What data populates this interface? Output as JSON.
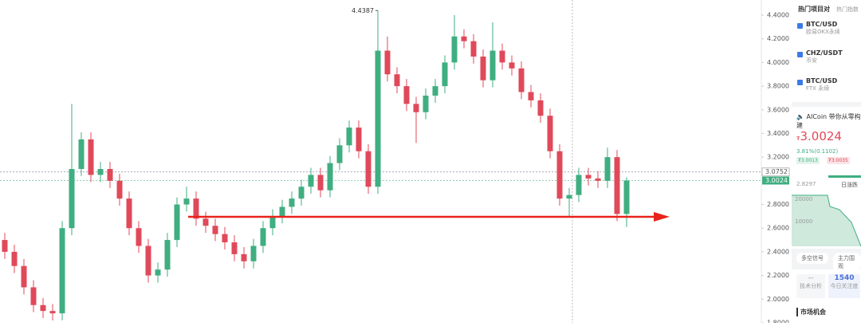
{
  "chart_data": {
    "type": "candlestick",
    "open": [
      2.5,
      2.4,
      2.28,
      2.1,
      1.95,
      1.9,
      1.88,
      2.6,
      3.1,
      3.35,
      3.05,
      3.1,
      3.0,
      2.85,
      2.6,
      2.45,
      2.2,
      2.25,
      2.5,
      2.8,
      2.85,
      2.68,
      2.62,
      2.55,
      2.48,
      2.38,
      2.32,
      2.45,
      2.6,
      2.7,
      2.78,
      2.85,
      2.95,
      3.05,
      2.92,
      3.15,
      3.3,
      3.45,
      3.25,
      2.95,
      4.1,
      3.9,
      3.8,
      3.65,
      3.58,
      3.72,
      3.8,
      4.0,
      4.22,
      4.18,
      4.05,
      3.85,
      4.1,
      4.0,
      3.95,
      3.75,
      3.68,
      3.55,
      3.25,
      2.85,
      2.88,
      3.05,
      3.02,
      3.0,
      3.2,
      2.72
    ],
    "high": [
      2.56,
      2.46,
      2.34,
      2.16,
      2.01,
      1.96,
      2.66,
      3.65,
      3.41,
      3.41,
      3.16,
      3.16,
      3.06,
      2.91,
      2.66,
      2.51,
      2.31,
      2.56,
      2.86,
      2.95,
      2.91,
      2.74,
      2.68,
      2.61,
      2.54,
      2.44,
      2.51,
      2.66,
      2.76,
      2.84,
      2.91,
      3.01,
      3.11,
      3.11,
      3.21,
      3.36,
      3.51,
      3.51,
      3.31,
      4.4387,
      4.22,
      3.96,
      3.86,
      3.71,
      3.78,
      3.86,
      4.06,
      4.4,
      4.28,
      4.24,
      4.11,
      4.34,
      4.16,
      4.06,
      4.01,
      3.81,
      3.74,
      3.61,
      3.31,
      2.94,
      3.11,
      3.11,
      3.08,
      3.28,
      3.26,
      3.03
    ],
    "low": [
      2.34,
      2.22,
      2.04,
      1.89,
      1.84,
      1.82,
      1.82,
      2.54,
      3.04,
      2.99,
      2.99,
      2.94,
      2.79,
      2.54,
      2.39,
      2.14,
      2.14,
      2.19,
      2.44,
      2.74,
      2.62,
      2.56,
      2.49,
      2.42,
      2.32,
      2.26,
      2.26,
      2.39,
      2.54,
      2.64,
      2.72,
      2.79,
      2.89,
      2.86,
      2.86,
      3.09,
      3.24,
      3.19,
      2.89,
      2.89,
      3.84,
      3.74,
      3.59,
      3.32,
      3.52,
      3.66,
      3.74,
      3.94,
      4.12,
      3.99,
      3.79,
      3.79,
      3.94,
      3.89,
      3.69,
      3.62,
      3.49,
      3.19,
      2.79,
      2.7,
      2.82,
      2.96,
      2.94,
      2.94,
      2.66,
      2.61
    ],
    "close": [
      2.4,
      2.28,
      2.1,
      1.95,
      1.9,
      1.88,
      2.6,
      3.1,
      3.35,
      3.05,
      3.1,
      3.0,
      2.85,
      2.6,
      2.45,
      2.2,
      2.25,
      2.5,
      2.8,
      2.85,
      2.68,
      2.62,
      2.55,
      2.48,
      2.38,
      2.32,
      2.45,
      2.6,
      2.7,
      2.78,
      2.85,
      2.95,
      3.05,
      2.92,
      3.15,
      3.3,
      3.45,
      3.25,
      2.95,
      4.1,
      3.9,
      3.8,
      3.65,
      3.58,
      3.72,
      3.8,
      4.0,
      4.22,
      4.18,
      4.05,
      3.85,
      4.1,
      4.0,
      3.95,
      3.75,
      3.68,
      3.55,
      3.25,
      2.85,
      2.88,
      3.05,
      3.02,
      3.0,
      3.2,
      2.72,
      3.0024
    ],
    "up_color": "#3fae80",
    "down_color": "#e0495a",
    "ylim": [
      1.8,
      4.528
    ],
    "yticks": [
      {
        "value": 4.4,
        "label": "4.4000"
      },
      {
        "value": 4.2,
        "label": "4.2000"
      },
      {
        "value": 4.0,
        "label": "4.0000"
      },
      {
        "value": 3.8,
        "label": "3.8000"
      },
      {
        "value": 3.6,
        "label": "3.6000"
      },
      {
        "value": 3.4,
        "label": "3.4000"
      },
      {
        "value": 3.2,
        "label": "3.2000"
      },
      {
        "value": 2.8,
        "label": "2.8000"
      },
      {
        "value": 2.6,
        "label": "2.6000"
      },
      {
        "value": 2.4,
        "label": "2.4000"
      },
      {
        "value": 2.2,
        "label": "2.2000"
      },
      {
        "value": 2.0,
        "label": "2.0000"
      },
      {
        "value": 1.8,
        "label": "1.8000"
      }
    ],
    "price_lines": [
      3.0752,
      3.0024
    ],
    "high_annotation_index": 39
  },
  "sidebar": {
    "title": "热门项目对",
    "tab": "热门指数",
    "pairs": [
      {
        "symbol": "BTC/USD",
        "exchange": "欧易OKX永续"
      },
      {
        "symbol": "CHZ/USDT",
        "exchange": "币安"
      },
      {
        "symbol": "BTC/USD",
        "exchange": "FTX 永续"
      }
    ],
    "notice": "AICoin 带你从零构建",
    "currency": "₮",
    "price": "3.0024",
    "change": "3.81%(0.1102)",
    "bid": "₮3.0013",
    "ask": "₮3.0035",
    "low_price": "2.8297",
    "period_tab": "日涨跌",
    "depth_labels": [
      "20000",
      "10000"
    ],
    "buttons": [
      "多空信号",
      "主力围观"
    ],
    "stats": [
      {
        "value": "--",
        "label": "技术分析"
      },
      {
        "value": "1540",
        "label": "今日关注度"
      }
    ],
    "section": "市场机会"
  }
}
